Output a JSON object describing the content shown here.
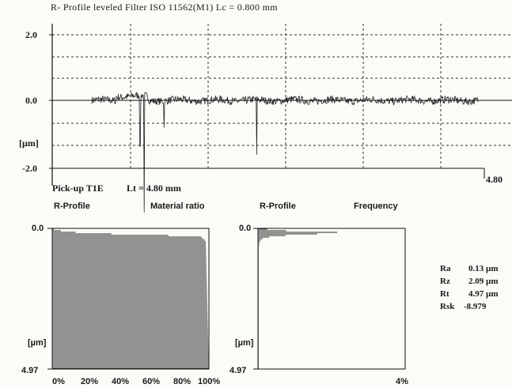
{
  "header": {
    "title": "R- Profile leveled Filter ISO 11562(M1) Lc = 0.800 mm"
  },
  "pickup": {
    "label": "Pick-up T1E",
    "length": "Lt = 4.80 mm"
  },
  "section_labels": {
    "r_profile_1": "R-Profile",
    "material_ratio": "Material ratio",
    "r_profile_2": "R-Profile",
    "frequency": "Frequency"
  },
  "parameters": [
    {
      "name": "Ra",
      "value": "0.13 µm"
    },
    {
      "name": "Rz",
      "value": "2.09 µm"
    },
    {
      "name": "Rt",
      "value": "4.97 µm"
    },
    {
      "name": "Rsk",
      "value": "-8.979"
    }
  ],
  "chart_data": [
    {
      "type": "line",
      "title": "R- Profile leveled Filter ISO 11562(M1) Lc = 0.800 mm",
      "ylabel": "[µm]",
      "xlim": [
        0,
        4.8
      ],
      "ylim": [
        -2.0,
        2.0
      ],
      "y_ticks": [
        "2.0",
        "0.0",
        "-2.0"
      ],
      "x_end_label": "4.80",
      "grid": true,
      "series": [
        {
          "x": [
            0,
            0.3,
            0.55,
            0.6,
            0.65,
            0.9,
            1.35,
            2.05,
            2.75,
            3.45,
            4.3,
            4.7
          ],
          "y": [
            0.0,
            0.05,
            0.15,
            -1.35,
            -3.3,
            -0.8,
            -0.2,
            -1.6,
            -0.1,
            -0.35,
            -0.15,
            0.0
          ]
        }
      ]
    },
    {
      "type": "area",
      "title": "Material ratio",
      "ylabel": "[µm]",
      "ylim": [
        0.0,
        4.97
      ],
      "y_ticks": [
        "0.0",
        "4.97"
      ],
      "x_ticks": [
        "0%",
        "20%",
        "40%",
        "60%",
        "80%",
        "100%"
      ],
      "x": [
        0,
        2,
        5,
        10,
        20,
        40,
        60,
        80,
        95,
        98,
        100
      ],
      "y": [
        0.0,
        0.05,
        0.08,
        0.12,
        0.16,
        0.2,
        0.23,
        0.26,
        0.3,
        0.45,
        4.97
      ]
    },
    {
      "type": "area",
      "title": "Frequency",
      "ylabel": "[µm]",
      "ylim": [
        0.0,
        4.97
      ],
      "y_ticks": [
        "0.0",
        "4.97"
      ],
      "x_ticks": [
        "4%"
      ],
      "y": [
        0.0,
        0.05,
        0.1,
        0.15,
        0.2,
        0.25,
        0.3,
        0.35,
        0.4,
        0.5,
        0.7,
        1.0
      ],
      "x": [
        0.1,
        0.4,
        1.0,
        2.6,
        1.6,
        0.8,
        0.35,
        0.15,
        0.08,
        0.04,
        0.02,
        0.01
      ]
    }
  ]
}
